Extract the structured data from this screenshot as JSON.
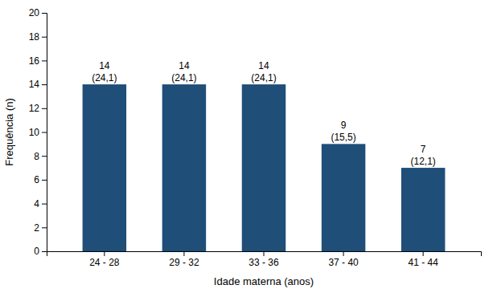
{
  "chart_data": {
    "type": "bar",
    "categories": [
      "24 - 28",
      "29 - 32",
      "33 - 36",
      "37 - 40",
      "41 - 44"
    ],
    "values": [
      14,
      14,
      14,
      9,
      7
    ],
    "annotations": [
      "(24,1)",
      "(24,1)",
      "(24,1)",
      "(15,5)",
      "(12,1)"
    ],
    "color": "#1F4E79",
    "xlabel": "Idade materna (anos)",
    "ylabel": "Frequência (n)",
    "ylim": [
      0,
      20
    ],
    "yticks": [
      0,
      2,
      4,
      6,
      8,
      10,
      12,
      14,
      16,
      18,
      20
    ],
    "grid": false,
    "data_labels": true
  }
}
